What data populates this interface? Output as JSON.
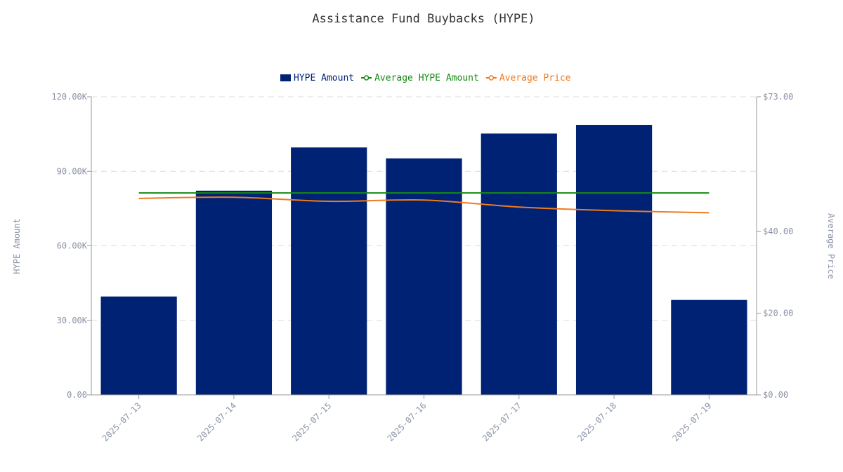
{
  "chart_data": {
    "type": "bar",
    "title": "Assistance Fund Buybacks (HYPE)",
    "categories": [
      "2025-07-13",
      "2025-07-14",
      "2025-07-15",
      "2025-07-16",
      "2025-07-17",
      "2025-07-18",
      "2025-07-19"
    ],
    "series": [
      {
        "name": "HYPE Amount",
        "type": "bar",
        "axis": "left",
        "color": "#002275",
        "values": [
          39600,
          82200,
          99600,
          95200,
          105200,
          108700,
          38200
        ]
      },
      {
        "name": "Average HYPE Amount",
        "type": "line",
        "axis": "left",
        "color": "#148a14",
        "values": [
          81300,
          81300,
          81300,
          81300,
          81300,
          81300,
          81300
        ]
      },
      {
        "name": "Average Price",
        "type": "line",
        "axis": "right",
        "color": "#f07a1e",
        "values": [
          48.1,
          48.4,
          47.4,
          47.7,
          46.0,
          45.1,
          44.6
        ]
      }
    ],
    "y_left": {
      "label": "HYPE Amount",
      "range": [
        0,
        120000
      ],
      "ticks": [
        0,
        30000,
        60000,
        90000,
        120000
      ],
      "tick_labels": [
        "0.00",
        "30.00K",
        "60.00K",
        "90.00K",
        "120.00K"
      ]
    },
    "y_right": {
      "label": "Average Price",
      "range": [
        0,
        73
      ],
      "ticks": [
        0,
        20,
        40,
        73
      ],
      "tick_labels": [
        "$0.00",
        "$20.00",
        "$40.00",
        "$73.00"
      ]
    },
    "grid": true,
    "legend_position": "top-center"
  }
}
